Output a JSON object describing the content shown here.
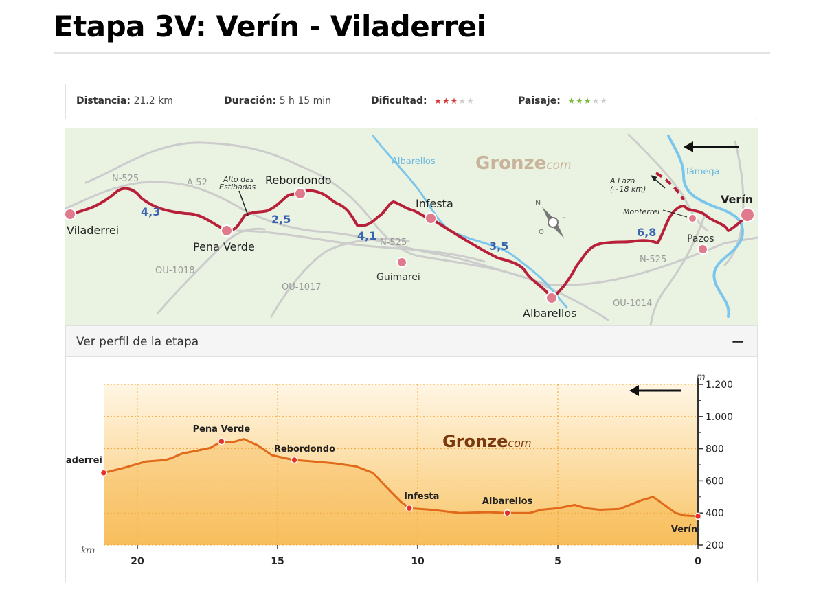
{
  "title": "Etapa 3V: Verín - Viladerrei",
  "info": {
    "distance_label": "Distancia:",
    "distance_value": "21.2 km",
    "duration_label": "Duración:",
    "duration_value": "5 h 15 min",
    "difficulty_label": "Dificultad:",
    "difficulty_stars": "★★★★★",
    "difficulty_rating": 3,
    "landscape_label": "Paisaje:",
    "landscape_stars": "★★★★★",
    "landscape_rating": 3
  },
  "colors": {
    "route": "#b8203a",
    "river": "#7cc6ec",
    "road": "#cccccc",
    "profile_line": "#e0691a",
    "star_red": "#d23a3a",
    "star_green": "#7ab83a",
    "star_off": "#cfcfcf"
  },
  "map": {
    "brand": "Gronze",
    "brand_suffix": "com",
    "towns": {
      "viladerrei": "Viladerrei",
      "pena_verde": "Pena Verde",
      "rebordondo": "Rebordondo",
      "infesta": "Infesta",
      "albarellos": "Albarellos",
      "guimarei": "Guimarei",
      "pazos": "Pazos",
      "verin": "Verín",
      "monterrei": "Monterrei"
    },
    "pass_line1": "Alto das",
    "pass_line2": "Estibadas",
    "laza_line1": "A Laza",
    "laza_line2": "(~18 km)",
    "roads": {
      "n525a": "N-525",
      "a52": "A-52",
      "n525b": "N-525",
      "n525c": "N-525",
      "ou1018": "OU-1018",
      "ou1017": "OU-1017",
      "ou1014": "OU-1014"
    },
    "rivers": {
      "albarellos": "Albarellos",
      "tamega": "Támega"
    },
    "distances": {
      "d1": "4,3",
      "d2": "2,5",
      "d3": "4,1",
      "d4": "3,5",
      "d5": "6,8"
    },
    "compass": {
      "n": "N",
      "e": "E",
      "o": "O"
    }
  },
  "profile": {
    "header": "Ver perfil de la etapa",
    "collapse": "−",
    "brand": "Gronze",
    "brand_suffix": "com",
    "unit_m": "m",
    "unit_km": "km",
    "y_ticks": [
      "1.200",
      "1.000",
      "800",
      "600",
      "400",
      "200"
    ],
    "x_ticks": [
      "20",
      "15",
      "10",
      "5",
      "0"
    ],
    "labels": {
      "viladerrei": "Viladerrei",
      "pena_verde": "Pena Verde",
      "rebordondo": "Rebordondo",
      "infesta": "Infesta",
      "albarellos": "Albarellos",
      "verin": "Verín"
    }
  },
  "chart_data": {
    "type": "area",
    "xlabel": "km",
    "ylabel": "m",
    "xlim": [
      21.2,
      0
    ],
    "ylim": [
      200,
      1200
    ],
    "x": [
      21.2,
      20.5,
      19.7,
      19.0,
      18.8,
      18.4,
      17.8,
      17.4,
      17.0,
      16.6,
      16.2,
      15.7,
      15.2,
      14.7,
      14.4,
      13.7,
      13.0,
      12.2,
      11.6,
      11.0,
      10.6,
      10.3,
      9.5,
      8.5,
      7.5,
      6.8,
      6.0,
      5.6,
      5.0,
      4.4,
      4.0,
      3.5,
      2.8,
      2.0,
      1.6,
      1.2,
      0.8,
      0.5,
      0.0
    ],
    "y": [
      650,
      680,
      720,
      730,
      740,
      770,
      790,
      805,
      845,
      840,
      860,
      820,
      760,
      740,
      730,
      720,
      710,
      690,
      650,
      540,
      470,
      430,
      420,
      400,
      405,
      400,
      400,
      420,
      430,
      450,
      430,
      420,
      425,
      480,
      500,
      450,
      400,
      385,
      380
    ],
    "points": [
      {
        "name": "Viladerrei",
        "km": 21.2,
        "m": 650
      },
      {
        "name": "Pena Verde",
        "km": 17.0,
        "m": 845
      },
      {
        "name": "Rebordondo",
        "km": 14.4,
        "m": 730
      },
      {
        "name": "Infesta",
        "km": 10.3,
        "m": 430
      },
      {
        "name": "Albarellos",
        "km": 6.8,
        "m": 400
      },
      {
        "name": "Verín",
        "km": 0.0,
        "m": 380
      }
    ]
  }
}
